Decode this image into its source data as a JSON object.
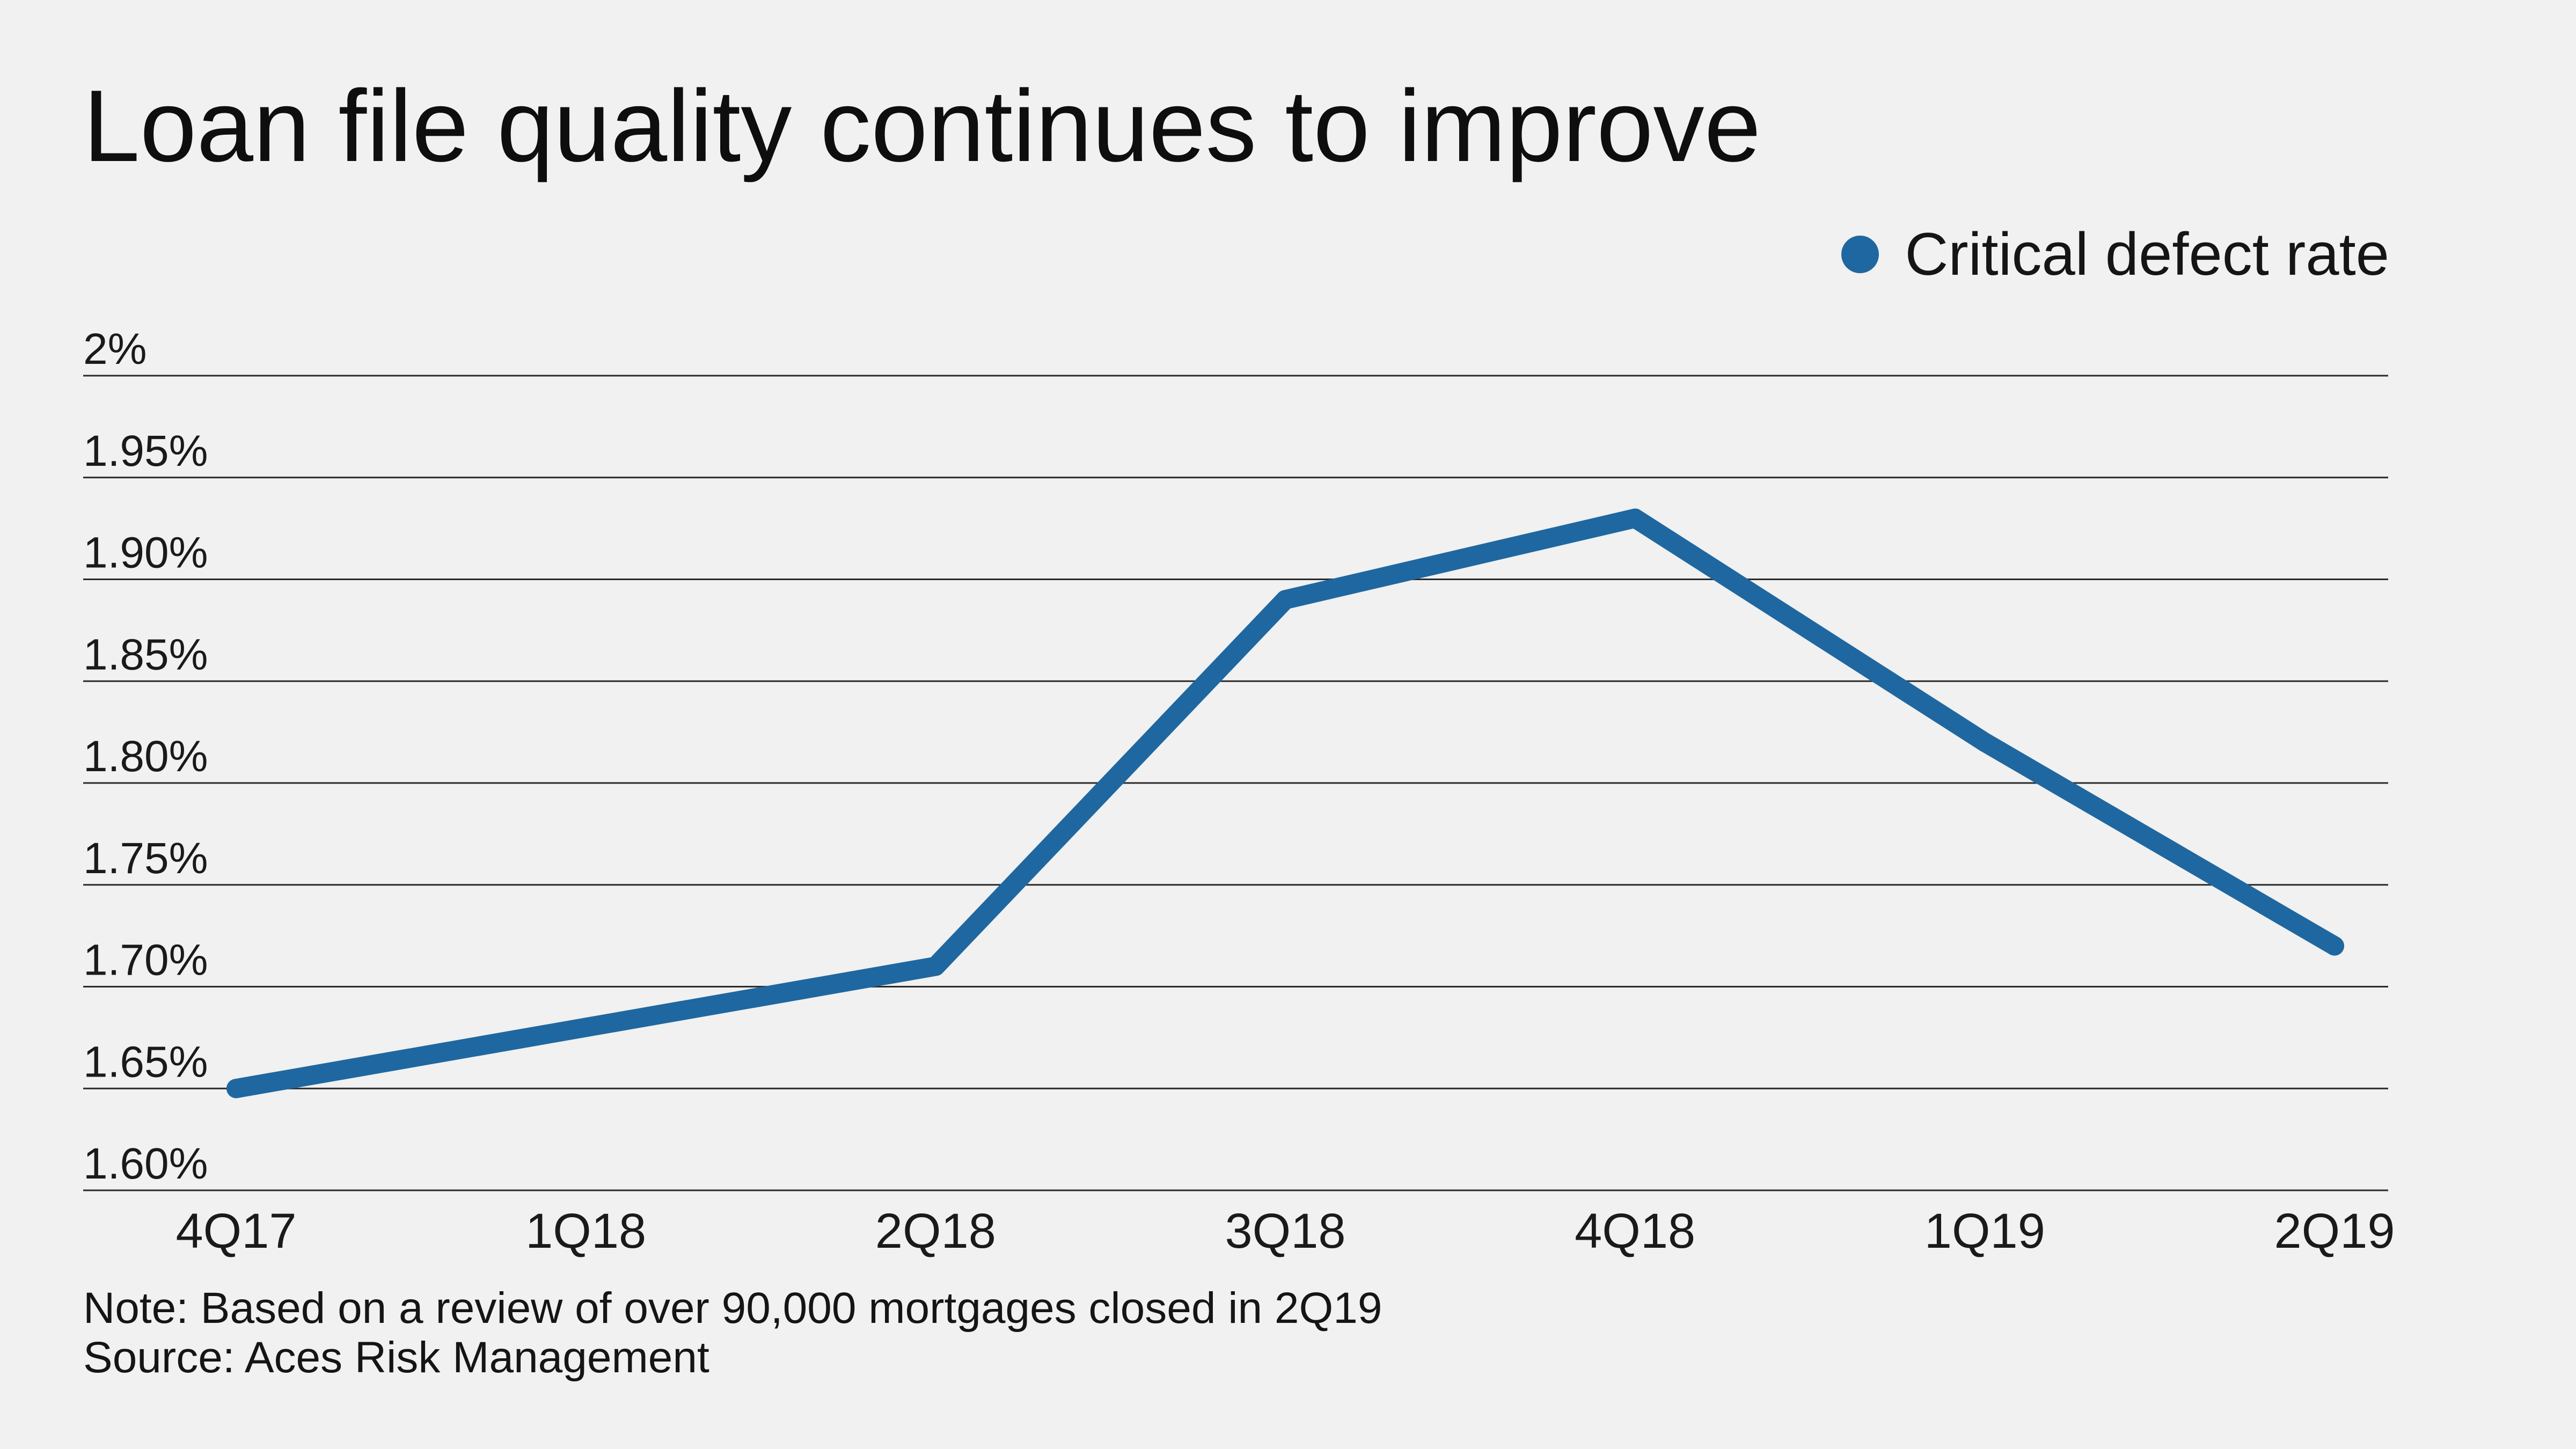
{
  "chart_data": {
    "type": "line",
    "title": "Loan file quality continues to improve",
    "xlabel": "",
    "ylabel": "",
    "categories": [
      "4Q17",
      "1Q18",
      "2Q18",
      "3Q18",
      "4Q18",
      "1Q19",
      "2Q19"
    ],
    "series": [
      {
        "name": "Critical defect rate",
        "color": "#1f67a0",
        "values": [
          1.65,
          1.68,
          1.71,
          1.89,
          1.93,
          1.82,
          1.72
        ]
      }
    ],
    "ylim": [
      1.6,
      2.0
    ],
    "yticks": [
      1.6,
      1.65,
      1.7,
      1.75,
      1.8,
      1.85,
      1.9,
      1.95,
      2.0
    ],
    "ytick_labels": [
      "1.60%",
      "1.65%",
      "1.70%",
      "1.75%",
      "1.80%",
      "1.85%",
      "1.90%",
      "1.95%",
      "2%"
    ],
    "grid": true,
    "legend_position": "top-right",
    "gridline_color": "#2a2a2a"
  },
  "footer": {
    "note": "Note: Based on a review of over 90,000 mortgages closed in 2Q19",
    "source": "Source: Aces Risk Management"
  }
}
